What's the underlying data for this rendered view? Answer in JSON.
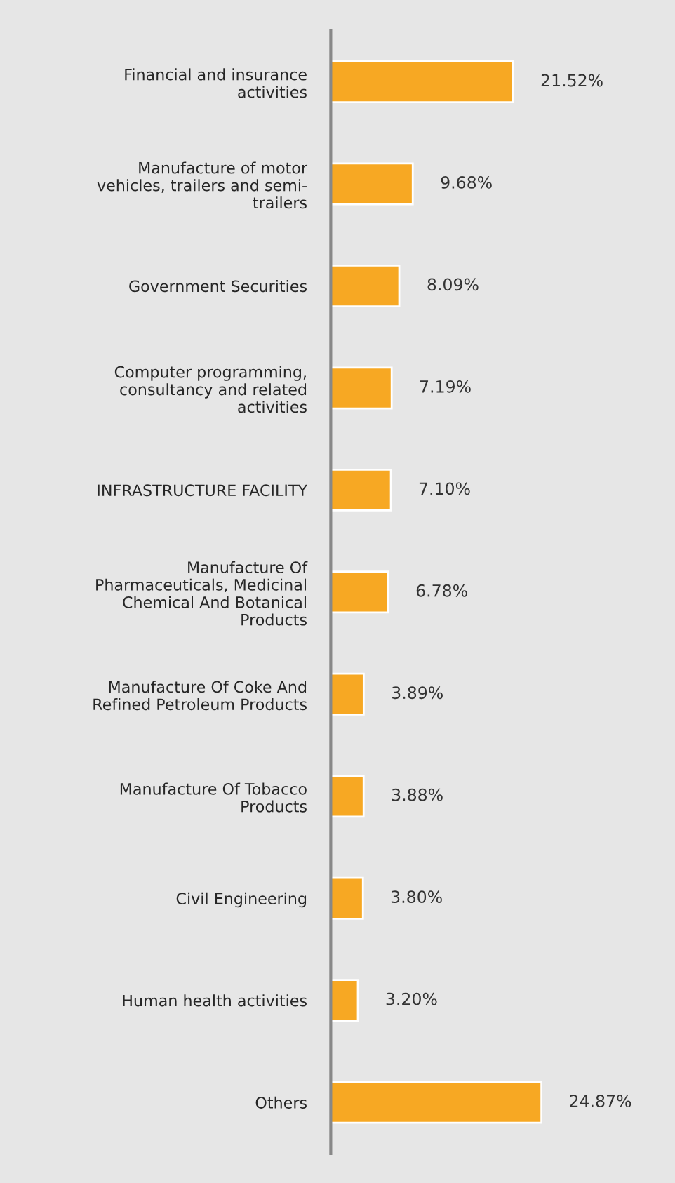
{
  "chart_data": {
    "type": "bar",
    "orientation": "horizontal",
    "categories": [
      "Financial and insurance\nactivities",
      "Manufacture of motor\nvehicles, trailers and semi-\ntrailers",
      "Government Securities",
      "Computer programming,\nconsultancy and related\nactivities",
      "INFRASTRUCTURE FACILITY",
      "Manufacture Of\nPharmaceuticals, Medicinal\nChemical And Botanical\nProducts",
      "Manufacture Of Coke And\nRefined Petroleum Products",
      "Manufacture Of Tobacco\nProducts",
      "Civil Engineering",
      "Human health activities",
      "Others"
    ],
    "values": [
      21.52,
      9.68,
      8.09,
      7.19,
      7.1,
      6.78,
      3.89,
      3.88,
      3.8,
      3.2,
      24.87
    ],
    "value_labels": [
      "21.52%",
      "9.68%",
      "8.09%",
      "7.19%",
      "7.10%",
      "6.78%",
      "3.89%",
      "3.88%",
      "3.80%",
      "3.20%",
      "24.87%"
    ],
    "color": "#f7a823",
    "grid": false,
    "legend": false
  }
}
